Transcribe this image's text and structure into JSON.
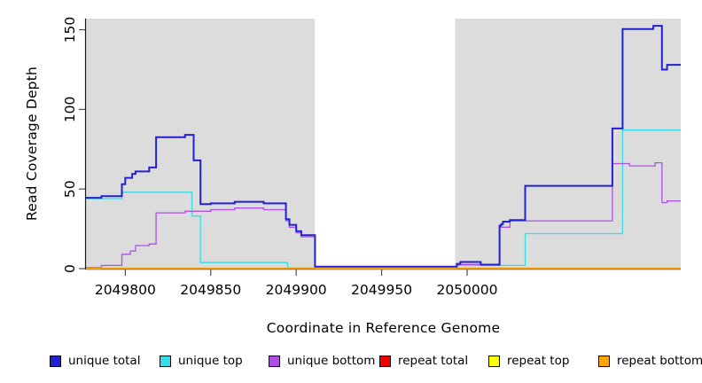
{
  "chart_data": {
    "type": "line",
    "subtype": "step",
    "title": "",
    "xlabel": "Coordinate in Reference Genome",
    "ylabel": "Read Coverage Depth",
    "xlim": [
      2049777,
      2050125
    ],
    "ylim": [
      0,
      157
    ],
    "x_ticks": [
      2049800,
      2049850,
      2049900,
      2049950,
      2050000
    ],
    "y_ticks": [
      0,
      50,
      100,
      150
    ],
    "grid": false,
    "legend_position": "bottom",
    "background_regions": [
      {
        "name": "unique-region-left",
        "x0": 2049777,
        "x1": 2049911,
        "color": "#DCDCDC"
      },
      {
        "name": "repeat-gap",
        "x0": 2049911,
        "x1": 2049993,
        "color": "#FFFFFF"
      },
      {
        "name": "unique-region-right",
        "x0": 2049993,
        "x1": 2050125,
        "color": "#DCDCDC"
      }
    ],
    "draw_order": [
      4,
      3,
      1,
      2,
      0,
      5
    ],
    "series": [
      {
        "label": "unique total",
        "color": "#2121D1",
        "line_width": 2.0,
        "points": [
          [
            2049777,
            44.5
          ],
          [
            2049786,
            45.5
          ],
          [
            2049798,
            53
          ],
          [
            2049800,
            57
          ],
          [
            2049804,
            59.5
          ],
          [
            2049806,
            61
          ],
          [
            2049814,
            63.5
          ],
          [
            2049818,
            82.5
          ],
          [
            2049835,
            84
          ],
          [
            2049840,
            68
          ],
          [
            2049844,
            40.5
          ],
          [
            2049850,
            41
          ],
          [
            2049864,
            42
          ],
          [
            2049881,
            41
          ],
          [
            2049894,
            31
          ],
          [
            2049896,
            27.5
          ],
          [
            2049900,
            23.5
          ],
          [
            2049903,
            21
          ],
          [
            2049911,
            1.2
          ],
          [
            2049994,
            3
          ],
          [
            2049996,
            4.2
          ],
          [
            2050008,
            2.5
          ],
          [
            2050019,
            27
          ],
          [
            2050020,
            28
          ],
          [
            2050021,
            29.5
          ],
          [
            2050025,
            30.5
          ],
          [
            2050034,
            52
          ],
          [
            2050085,
            88
          ],
          [
            2050091,
            150.5
          ],
          [
            2050109,
            152.5
          ],
          [
            2050114,
            125
          ],
          [
            2050117,
            128
          ],
          [
            2050125,
            128
          ]
        ]
      },
      {
        "label": "unique top",
        "color": "#35DDE6",
        "line_width": 1.3,
        "points": [
          [
            2049777,
            44
          ],
          [
            2049798,
            48
          ],
          [
            2049839,
            33
          ],
          [
            2049844,
            3.8
          ],
          [
            2049895,
            0.5
          ],
          [
            2049911,
            0.8
          ],
          [
            2049994,
            2
          ],
          [
            2050034,
            22
          ],
          [
            2050091,
            87
          ],
          [
            2050125,
            87
          ]
        ]
      },
      {
        "label": "unique bottom",
        "color": "#AC52E2",
        "line_width": 1.3,
        "points": [
          [
            2049777,
            0.5
          ],
          [
            2049786,
            2
          ],
          [
            2049798,
            9
          ],
          [
            2049803,
            11
          ],
          [
            2049806,
            14.5
          ],
          [
            2049814,
            15.5
          ],
          [
            2049818,
            35
          ],
          [
            2049835,
            36
          ],
          [
            2049850,
            37
          ],
          [
            2049864,
            38
          ],
          [
            2049881,
            37
          ],
          [
            2049894,
            30
          ],
          [
            2049896,
            26
          ],
          [
            2049900,
            22.5
          ],
          [
            2049903,
            20
          ],
          [
            2049911,
            0.8
          ],
          [
            2049994,
            2.6
          ],
          [
            2050019,
            26
          ],
          [
            2050025,
            30
          ],
          [
            2050085,
            66
          ],
          [
            2050095,
            64.5
          ],
          [
            2050110,
            66.5
          ],
          [
            2050114,
            41.5
          ],
          [
            2050117,
            42.5
          ],
          [
            2050125,
            42.5
          ]
        ]
      },
      {
        "label": "repeat total",
        "color": "#EE0000",
        "line_width": 1.3,
        "points": [
          [
            2049777,
            0.6
          ],
          [
            2049786,
            0.1
          ],
          [
            2049911,
            0.5
          ],
          [
            2049994,
            0.1
          ],
          [
            2050125,
            0.1
          ]
        ]
      },
      {
        "label": "repeat top",
        "color": "#FFFF00",
        "line_width": 1.3,
        "points": [
          [
            2049777,
            0
          ],
          [
            2050125,
            0
          ]
        ]
      },
      {
        "label": "repeat bottom",
        "color": "#FFA500",
        "line_width": 1.6,
        "points": [
          [
            2049777,
            0.2
          ],
          [
            2050125,
            0.2
          ]
        ]
      }
    ]
  }
}
